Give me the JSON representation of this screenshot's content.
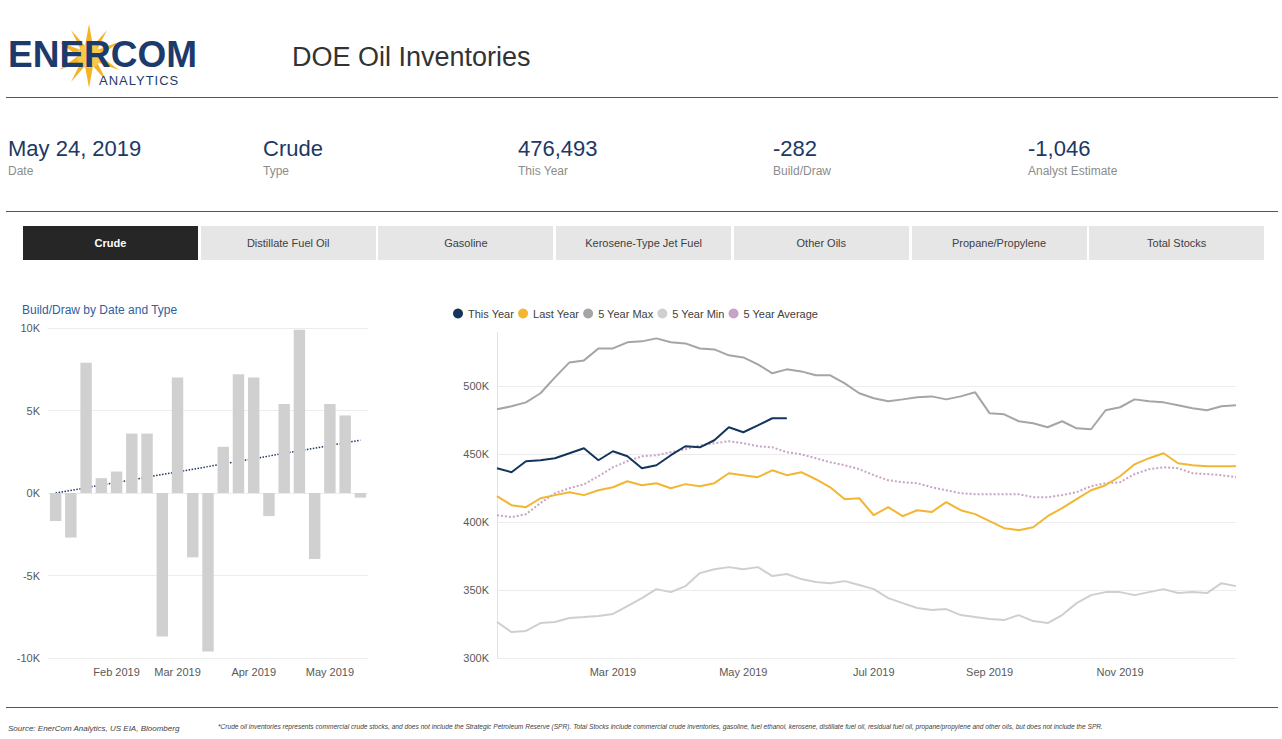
{
  "header": {
    "logo": "ENERCOM",
    "logo_sub": "ANALYTICS",
    "title": "DOE Oil Inventories"
  },
  "cards": [
    {
      "value": "May 24, 2019",
      "label": "Date"
    },
    {
      "value": "Crude",
      "label": "Type"
    },
    {
      "value": "476,493",
      "label": "This Year"
    },
    {
      "value": "-282",
      "label": "Build/Draw"
    },
    {
      "value": "-1,046",
      "label": "Analyst Estimate"
    }
  ],
  "tabs": {
    "items": [
      "Crude",
      "Distillate Fuel Oil",
      "Gasoline",
      "Kerosene-Type Jet Fuel",
      "Other Oils",
      "Propane/Propylene",
      "Total Stocks"
    ],
    "active": "Crude"
  },
  "chart_data": [
    {
      "type": "bar",
      "title": "Build/Draw by Date and Type",
      "categories": [
        null,
        null,
        null,
        null,
        "Feb 2019",
        null,
        null,
        null,
        "Mar 2019",
        null,
        null,
        null,
        null,
        "Apr 2019",
        null,
        null,
        null,
        null,
        "May 2019",
        null,
        null
      ],
      "series": [
        {
          "type": "bar",
          "color": "#d0d0d0",
          "values": [
            -1700,
            -2700,
            7900,
            900,
            1300,
            3600,
            3600,
            -8700,
            7000,
            -3900,
            -9600,
            2800,
            7200,
            7000,
            -1400,
            5400,
            9900,
            -4000,
            5400,
            4700,
            -282
          ]
        },
        {
          "type": "line",
          "color": "#1f3864",
          "line_style": "dotted",
          "values": [
            0,
            null,
            null,
            null,
            null,
            null,
            null,
            null,
            null,
            null,
            null,
            null,
            null,
            null,
            null,
            null,
            null,
            null,
            null,
            null,
            3200
          ]
        }
      ],
      "ylim": [
        -10000,
        10000
      ],
      "yticks": [
        {
          "value": -10000,
          "label": "-10K"
        },
        {
          "value": -5000,
          "label": "-5K"
        },
        {
          "value": 0,
          "label": "0K"
        },
        {
          "value": 5000,
          "label": "5K"
        },
        {
          "value": 10000,
          "label": "10K"
        }
      ],
      "grid": true
    },
    {
      "type": "line",
      "categories": [
        null,
        null,
        null,
        null,
        null,
        null,
        null,
        null,
        "Mar 2019",
        null,
        null,
        null,
        null,
        null,
        null,
        null,
        null,
        "May 2019",
        null,
        null,
        null,
        null,
        null,
        null,
        null,
        null,
        "Jul 2019",
        null,
        null,
        null,
        null,
        null,
        null,
        null,
        "Sep 2019",
        null,
        null,
        null,
        null,
        null,
        null,
        null,
        null,
        "Nov 2019",
        null,
        null,
        null,
        null,
        null,
        null,
        null,
        null
      ],
      "series": [
        {
          "name": "This Year",
          "color": "#14345c",
          "values": [
            439700,
            436800,
            444900,
            445600,
            447100,
            450700,
            454400,
            445600,
            452200,
            448500,
            439700,
            441900,
            449300,
            455900,
            455100,
            460300,
            469900,
            466200,
            471300,
            476500,
            476493,
            null,
            null,
            null,
            null,
            null,
            null,
            null,
            null,
            null,
            null,
            null,
            null,
            null,
            null,
            null,
            null,
            null,
            null,
            null,
            null,
            null,
            null,
            null,
            null,
            null,
            null,
            null,
            null,
            null,
            null,
            null
          ]
        },
        {
          "name": "Last Year",
          "color": "#f2b632",
          "values": [
            419100,
            412500,
            411000,
            417600,
            419900,
            422000,
            419900,
            423500,
            425700,
            430100,
            427200,
            428700,
            425000,
            428000,
            426500,
            428700,
            436000,
            434600,
            433100,
            438200,
            434600,
            436800,
            431600,
            425700,
            416900,
            417600,
            405100,
            411000,
            404400,
            408800,
            407400,
            414700,
            408800,
            405900,
            400700,
            395600,
            394100,
            396300,
            404400,
            410300,
            416900,
            423500,
            427200,
            433800,
            442600,
            447100,
            450700,
            443400,
            441900,
            441200,
            441200,
            441200
          ]
        },
        {
          "name": "5 Year Max",
          "color": "#a5a5a5",
          "values": [
            483100,
            485300,
            488200,
            494900,
            506600,
            517600,
            519100,
            527900,
            527900,
            532400,
            533100,
            535300,
            532400,
            531600,
            527900,
            527200,
            522800,
            521300,
            516200,
            509600,
            512500,
            511000,
            508100,
            508100,
            502200,
            494900,
            491200,
            489000,
            490400,
            491900,
            492600,
            490400,
            492600,
            495600,
            480100,
            479400,
            474300,
            472800,
            469900,
            474300,
            469100,
            468400,
            482400,
            484600,
            490400,
            489000,
            488200,
            486000,
            483800,
            482400,
            485300,
            486000
          ]
        },
        {
          "name": "5 Year Min",
          "color": "#cfcfcf",
          "values": [
            326500,
            319100,
            319900,
            325700,
            326500,
            329400,
            330100,
            330900,
            332400,
            338200,
            344100,
            350700,
            348500,
            352900,
            362500,
            365400,
            366900,
            365400,
            366900,
            360300,
            361800,
            358100,
            355900,
            355100,
            356600,
            353700,
            350700,
            344100,
            340400,
            336800,
            335300,
            336000,
            331600,
            330100,
            328700,
            327900,
            331600,
            327200,
            325700,
            331600,
            340400,
            346300,
            348500,
            348500,
            346300,
            348500,
            350700,
            347800,
            348500,
            347800,
            355100,
            352900
          ]
        },
        {
          "name": "5 Year Average",
          "color": "#c9a3c4",
          "line_style": "dotted",
          "values": [
            405100,
            403700,
            405900,
            414000,
            421300,
            425000,
            427900,
            433800,
            440400,
            444900,
            448500,
            449300,
            451500,
            453700,
            456600,
            458100,
            459600,
            458100,
            455900,
            455100,
            451500,
            450000,
            447100,
            444100,
            441900,
            439000,
            434600,
            430900,
            429400,
            428700,
            425700,
            423500,
            421300,
            420600,
            420600,
            420600,
            420600,
            418400,
            418400,
            419900,
            422100,
            426500,
            428700,
            429400,
            435400,
            439000,
            440400,
            439700,
            436000,
            435400,
            434600,
            433100
          ]
        }
      ],
      "ylim": [
        300000,
        540000
      ],
      "yticks": [
        {
          "value": 300000,
          "label": "300K"
        },
        {
          "value": 350000,
          "label": "350K"
        },
        {
          "value": 400000,
          "label": "400K"
        },
        {
          "value": 450000,
          "label": "450K"
        },
        {
          "value": 500000,
          "label": "500K"
        }
      ],
      "grid": true,
      "legend": "top-left"
    }
  ],
  "footer": {
    "source": "Source: EnerCom Analytics, US EIA, Bloomberg",
    "note": "*Crude oil inventories represents commercial crude stocks, and does not include the Strategic Petroleum Reserve (SPR).  Total Stocks include commercial crude inventories, gasoline, fuel ethanol, kerosene, distillate fuel oil, residual fuel oil, propane/propylene and other oils, but does not include the SPR."
  }
}
